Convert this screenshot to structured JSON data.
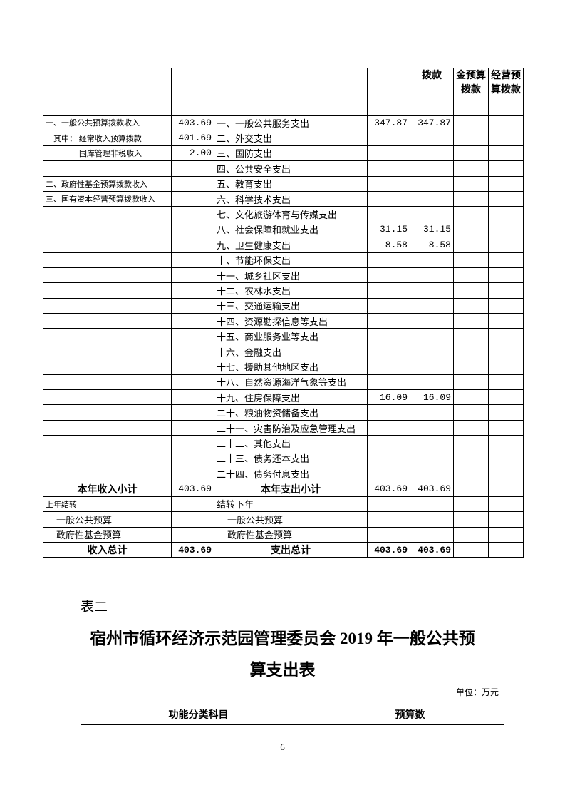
{
  "table1": {
    "header": [
      "",
      "",
      "",
      "",
      "拨款",
      "金预算拨款",
      "经营预算拨款"
    ],
    "rows": [
      {
        "income": "一、一般公共预算拨款收入",
        "income_amt": "403.69",
        "expense": "一、一般公共服务支出",
        "total": "347.87",
        "gen": "347.87"
      },
      {
        "income": "其中：  经常收入预算拨款",
        "income_amt": "401.69",
        "expense": "二、外交支出"
      },
      {
        "income": "国库管理非税收入",
        "income_amt": "2.00",
        "expense": "三、国防支出"
      },
      {
        "income": "",
        "expense": "四、公共安全支出"
      },
      {
        "income": "二、政府性基金预算拨款收入",
        "expense": "五、教育支出"
      },
      {
        "income": "三、国有资本经营预算拨款收入",
        "expense": "六、科学技术支出"
      },
      {
        "income": "",
        "expense": "七、文化旅游体育与传媒支出"
      },
      {
        "income": "",
        "expense": "八、社会保障和就业支出",
        "total": "31.15",
        "gen": "31.15"
      },
      {
        "income": "",
        "expense": "九、卫生健康支出",
        "total": "8.58",
        "gen": "8.58"
      },
      {
        "income": "",
        "expense": "十、节能环保支出"
      },
      {
        "income": "",
        "expense": "十一、城乡社区支出"
      },
      {
        "income": "",
        "expense": "十二、农林水支出"
      },
      {
        "income": "",
        "expense": "十三、交通运输支出"
      },
      {
        "income": "",
        "expense": "十四、资源勘探信息等支出"
      },
      {
        "income": "",
        "expense": "十五、商业服务业等支出"
      },
      {
        "income": "",
        "expense": "十六、金融支出"
      },
      {
        "income": "",
        "expense": "十七、援助其他地区支出"
      },
      {
        "income": "",
        "expense": "十八、自然资源海洋气象等支出"
      },
      {
        "income": "",
        "expense": "十九、住房保障支出",
        "total": "16.09",
        "gen": "16.09"
      },
      {
        "income": "",
        "expense": "二十、粮油物资储备支出"
      },
      {
        "income": "",
        "expense": "二十一、灾害防治及应急管理支出"
      },
      {
        "income": "",
        "expense": "二十二、其他支出"
      },
      {
        "income": "",
        "expense": "二十三、债务还本支出"
      },
      {
        "income": "",
        "expense": "二十四、债务付息支出"
      }
    ],
    "subtotal": {
      "income": "本年收入小计",
      "income_amt": "403.69",
      "expense": "本年支出小计",
      "total": "403.69",
      "gen": "403.69"
    },
    "carry": [
      {
        "income": "上年结转",
        "expense": "结转下年"
      },
      {
        "income": "一般公共预算",
        "expense": "一般公共预算"
      },
      {
        "income": "政府性基金预算",
        "expense": "政府性基金预算"
      }
    ],
    "grand_total": {
      "income": "收入总计",
      "income_amt": "403.69",
      "expense": "支出总计",
      "total": "403.69",
      "gen": "403.69"
    }
  },
  "table2_label": "表二",
  "title_line1": "宿州市循环经济示范园管理委员会 2019 年一般公共预",
  "title_line2": "算支出表",
  "unit": "单位：万元",
  "table2": {
    "headers": [
      "功能分类科目",
      "预算数"
    ]
  },
  "page_number": "6"
}
